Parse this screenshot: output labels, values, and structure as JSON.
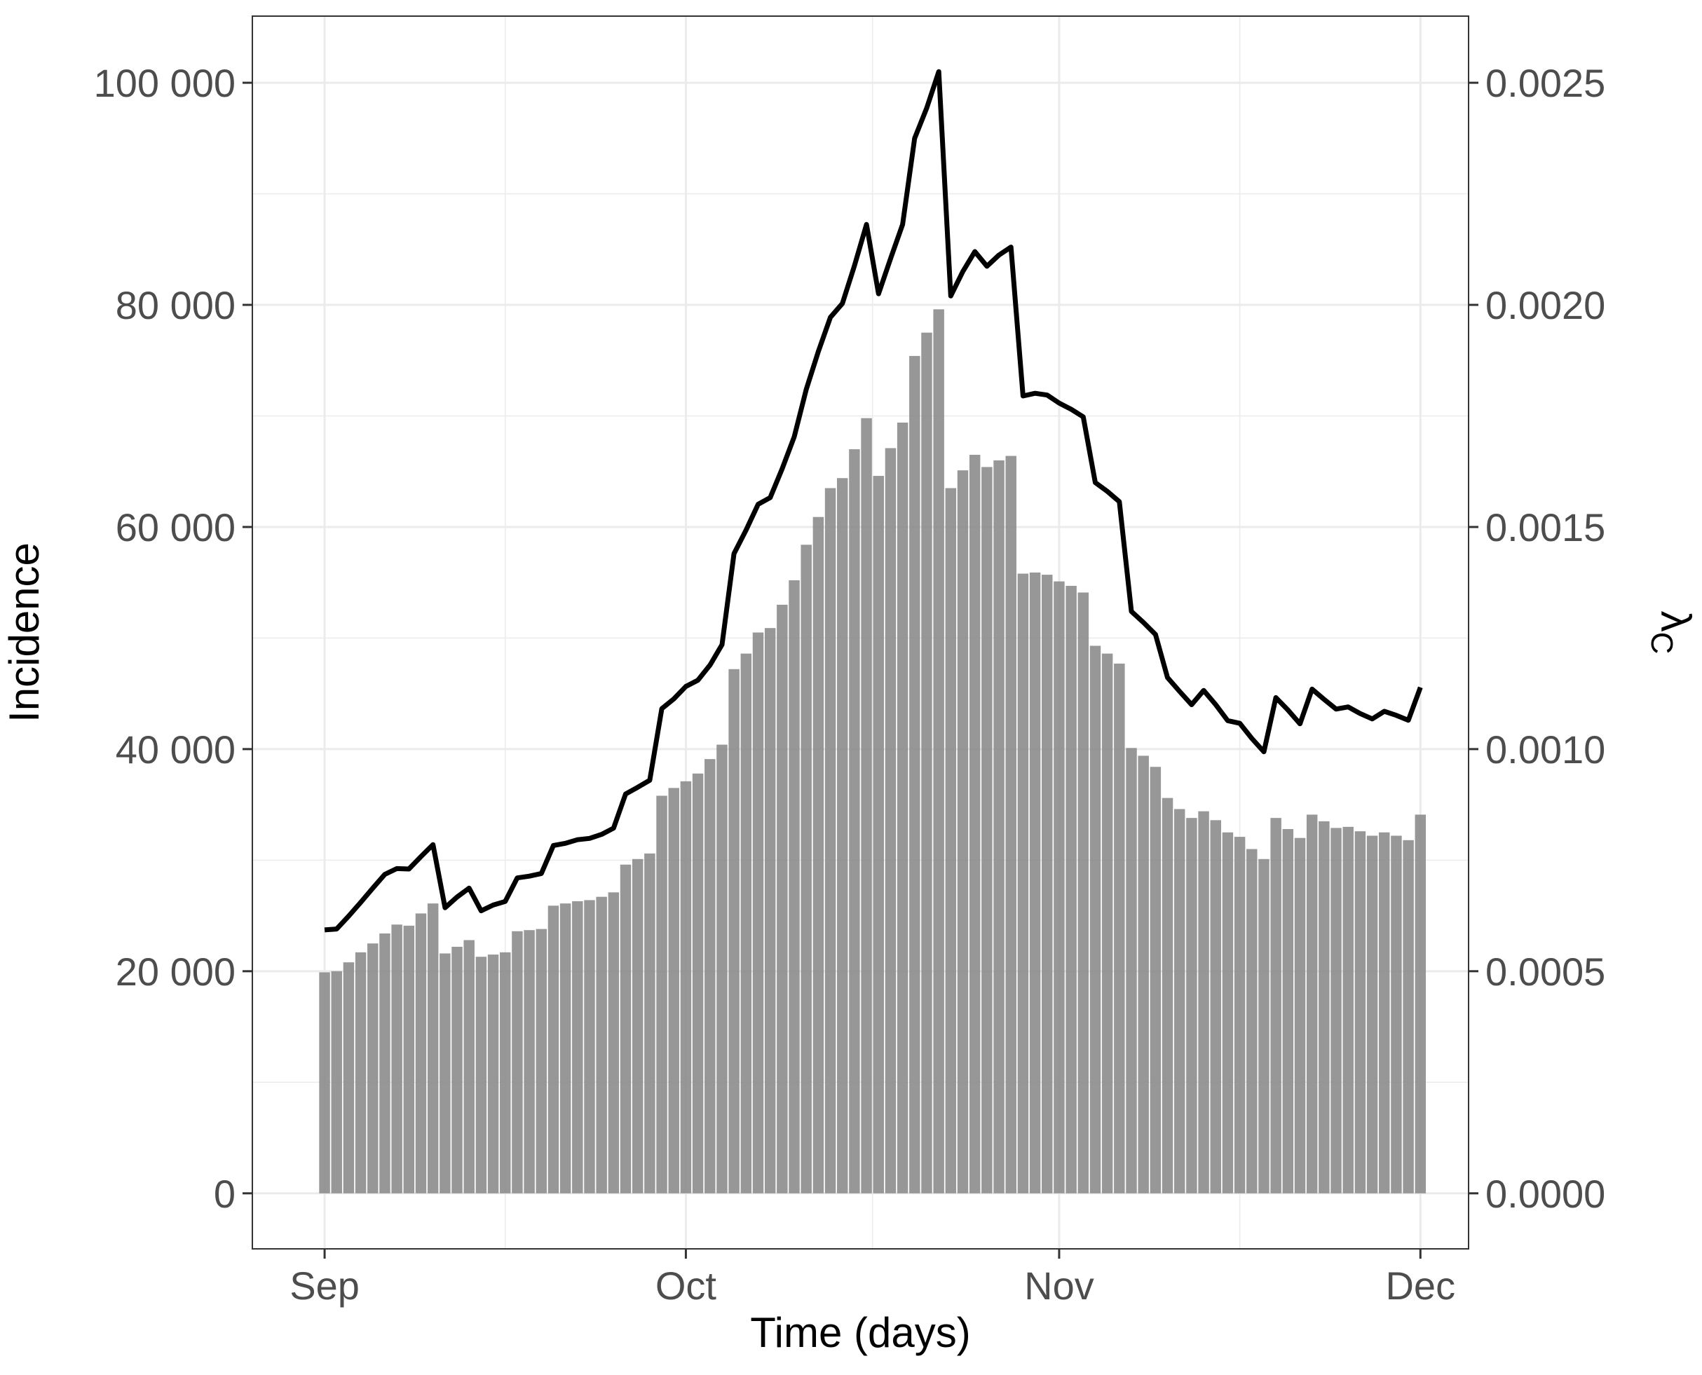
{
  "chart_data": {
    "type": "bar",
    "xlabel": "Time (days)",
    "ylabel": "Incidence",
    "ylabel_right": "λ_C",
    "x_tick_labels": [
      "Sep",
      "Oct",
      "Nov",
      "Dec"
    ],
    "x_tick_dates": [
      "2020-09-01",
      "2020-10-01",
      "2020-11-01",
      "2020-12-01"
    ],
    "y_tick_labels": [
      "0",
      "20 000",
      "40 000",
      "60 000",
      "80 000",
      "100 000"
    ],
    "y_tick_values": [
      0,
      20000,
      40000,
      60000,
      80000,
      100000
    ],
    "y2_tick_labels": [
      "0.0000",
      "0.0005",
      "0.0010",
      "0.0015",
      "0.0020",
      "0.0025"
    ],
    "y2_tick_values": [
      0,
      0.0005,
      0.001,
      0.0015,
      0.002,
      0.0025
    ],
    "ylim": [
      -5000,
      106000
    ],
    "y2lim": [
      -0.000125,
      0.00265
    ],
    "xlim": [
      "2020-08-26",
      "2020-12-05"
    ],
    "grid": true,
    "colors": {
      "bars": "#8c8c8c",
      "line": "#000000",
      "grid": "#ebebeb"
    },
    "x": [
      "2020-09-01",
      "2020-09-02",
      "2020-09-03",
      "2020-09-04",
      "2020-09-05",
      "2020-09-06",
      "2020-09-07",
      "2020-09-08",
      "2020-09-09",
      "2020-09-10",
      "2020-09-11",
      "2020-09-12",
      "2020-09-13",
      "2020-09-14",
      "2020-09-15",
      "2020-09-16",
      "2020-09-17",
      "2020-09-18",
      "2020-09-19",
      "2020-09-20",
      "2020-09-21",
      "2020-09-22",
      "2020-09-23",
      "2020-09-24",
      "2020-09-25",
      "2020-09-26",
      "2020-09-27",
      "2020-09-28",
      "2020-09-29",
      "2020-09-30",
      "2020-10-01",
      "2020-10-02",
      "2020-10-03",
      "2020-10-04",
      "2020-10-05",
      "2020-10-06",
      "2020-10-07",
      "2020-10-08",
      "2020-10-09",
      "2020-10-10",
      "2020-10-11",
      "2020-10-12",
      "2020-10-13",
      "2020-10-14",
      "2020-10-15",
      "2020-10-16",
      "2020-10-17",
      "2020-10-18",
      "2020-10-19",
      "2020-10-20",
      "2020-10-21",
      "2020-10-22",
      "2020-10-23",
      "2020-10-24",
      "2020-10-25",
      "2020-10-26",
      "2020-10-27",
      "2020-10-28",
      "2020-10-29",
      "2020-10-30",
      "2020-10-31",
      "2020-11-01",
      "2020-11-02",
      "2020-11-03",
      "2020-11-04",
      "2020-11-05",
      "2020-11-06",
      "2020-11-07",
      "2020-11-08",
      "2020-11-09",
      "2020-11-10",
      "2020-11-11",
      "2020-11-12",
      "2020-11-13",
      "2020-11-14",
      "2020-11-15",
      "2020-11-16",
      "2020-11-17",
      "2020-11-18",
      "2020-11-19",
      "2020-11-20",
      "2020-11-21",
      "2020-11-22",
      "2020-11-23",
      "2020-11-24",
      "2020-11-25",
      "2020-11-26",
      "2020-11-27",
      "2020-11-28",
      "2020-11-29",
      "2020-11-30",
      "2020-12-01"
    ],
    "series": [
      {
        "type": "bar",
        "axis": "left",
        "values": [
          19900,
          20000,
          20800,
          21700,
          22500,
          23400,
          24200,
          24100,
          25200,
          26100,
          21600,
          22200,
          22800,
          21300,
          21500,
          21700,
          23600,
          23700,
          23800,
          25900,
          26100,
          26300,
          26400,
          26700,
          27100,
          29600,
          30100,
          30600,
          35800,
          36500,
          37100,
          37800,
          39100,
          40400,
          47200,
          48600,
          50500,
          50900,
          53000,
          55200,
          58400,
          60900,
          63500,
          64400,
          67000,
          69800,
          64600,
          67100,
          69400,
          75400,
          77500,
          79600,
          63500,
          65100,
          66500,
          65400,
          66000,
          66400,
          55800,
          55900,
          55700,
          55100,
          54700,
          54100,
          49300,
          48600,
          47700,
          40100,
          39400,
          38400,
          35600,
          34600,
          33800,
          34400,
          33600,
          32500,
          32100,
          31000,
          30100,
          33800,
          32800,
          32000,
          34100,
          33500,
          32900,
          33000,
          32600,
          32200,
          32500,
          32200,
          31800,
          34100
        ]
      },
      {
        "type": "line",
        "axis": "right",
        "values": [
          0.000593,
          0.000595,
          0.000624,
          0.000655,
          0.000687,
          0.000718,
          0.000731,
          0.00073,
          0.000758,
          0.000785,
          0.000643,
          0.000667,
          0.000687,
          0.000636,
          0.000649,
          0.000657,
          0.00071,
          0.000714,
          0.00072,
          0.000783,
          0.000788,
          0.000796,
          0.000799,
          0.000808,
          0.000822,
          0.000899,
          0.000914,
          0.00093,
          0.001091,
          0.001113,
          0.001141,
          0.001155,
          0.001189,
          0.001235,
          0.00144,
          0.001493,
          0.001551,
          0.001566,
          0.001631,
          0.001703,
          0.00181,
          0.001895,
          0.001972,
          0.002003,
          0.002088,
          0.002181,
          0.002025,
          0.002104,
          0.002181,
          0.002375,
          0.002443,
          0.002525,
          0.00202,
          0.002075,
          0.00212,
          0.002087,
          0.002112,
          0.00213,
          0.001795,
          0.001801,
          0.001797,
          0.001779,
          0.001765,
          0.001748,
          0.0016,
          0.00158,
          0.001557,
          0.00131,
          0.001285,
          0.001258,
          0.001161,
          0.00113,
          0.0011,
          0.001132,
          0.0011,
          0.001064,
          0.001058,
          0.001024,
          0.000994,
          0.001116,
          0.001088,
          0.001057,
          0.001135,
          0.001112,
          0.00109,
          0.001095,
          0.00108,
          0.001068,
          0.001085,
          0.001076,
          0.001065,
          0.001139
        ]
      }
    ]
  }
}
